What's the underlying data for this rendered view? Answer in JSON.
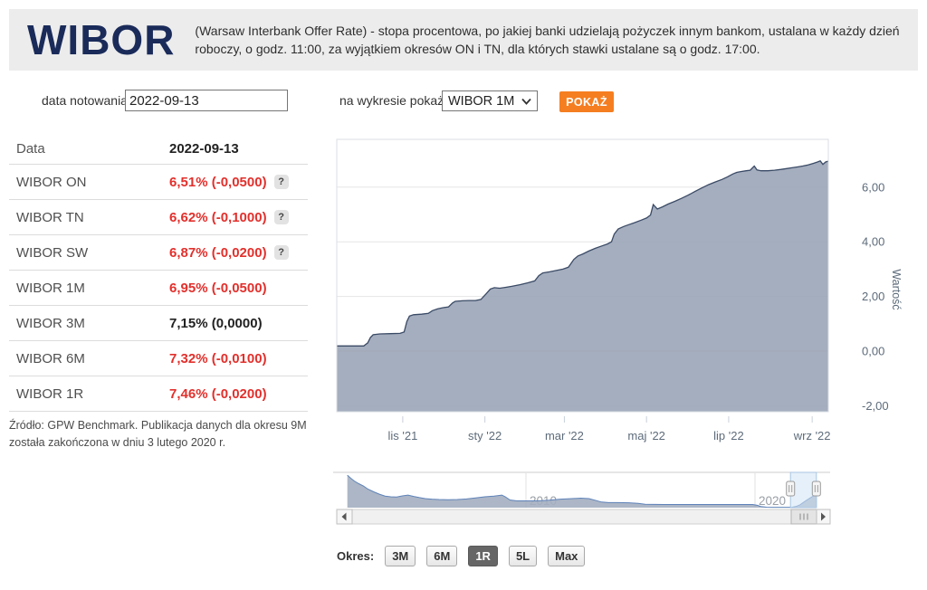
{
  "header": {
    "title": "WIBOR",
    "description": "(Warsaw Interbank Offer Rate) - stopa procentowa, po jakiej banki udzielają pożyczek innym bankom, ustalana w każdy dzień roboczy, o godz. 11:00, za wyjątkiem okresów ON i TN, dla których stawki ustalane są o godz. 17:00."
  },
  "controls": {
    "date_label": "data notowania:",
    "date_value": "2022-09-13",
    "series_label": "na wykresie pokaż:",
    "series_value": "WIBOR 1M",
    "show_button": "POKAŻ"
  },
  "table": {
    "help_label": "?",
    "header": {
      "label": "Data",
      "value": "2022-09-13"
    },
    "rows": [
      {
        "label": "WIBOR ON",
        "value": "6,51% (-0,0500)",
        "negative": true,
        "help": true
      },
      {
        "label": "WIBOR TN",
        "value": "6,62% (-0,1000)",
        "negative": true,
        "help": true
      },
      {
        "label": "WIBOR SW",
        "value": "6,87% (-0,0200)",
        "negative": true,
        "help": true
      },
      {
        "label": "WIBOR 1M",
        "value": "6,95% (-0,0500)",
        "negative": true,
        "help": false
      },
      {
        "label": "WIBOR 3M",
        "value": "7,15% (0,0000)",
        "negative": false,
        "help": false
      },
      {
        "label": "WIBOR 6M",
        "value": "7,32% (-0,0100)",
        "negative": true,
        "help": false
      },
      {
        "label": "WIBOR 1R",
        "value": "7,46% (-0,0200)",
        "negative": true,
        "help": false
      }
    ]
  },
  "source_note": "Źródło: GPW Benchmark. Publikacja danych dla okresu 9M została zakończona w dniu 3 lutego 2020 r.",
  "period": {
    "label": "Okres:",
    "buttons": [
      "3M",
      "6M",
      "1R",
      "5L",
      "Max"
    ],
    "active": "1R"
  },
  "chart_data": {
    "type": "area",
    "series_name": "WIBOR 1M",
    "ylabel": "Wartość",
    "ylim": [
      -2.2,
      7.75
    ],
    "x_range_days": 365,
    "yticks": [
      {
        "label": "6,00",
        "value": 6
      },
      {
        "label": "4,00",
        "value": 4
      },
      {
        "label": "2,00",
        "value": 2
      },
      {
        "label": "0,00",
        "value": 0
      },
      {
        "label": "-2,00",
        "value": -2
      }
    ],
    "xticks": [
      {
        "label": "lis '21",
        "day": 49
      },
      {
        "label": "sty '22",
        "day": 110
      },
      {
        "label": "mar '22",
        "day": 169
      },
      {
        "label": "maj '22",
        "day": 230
      },
      {
        "label": "lip '22",
        "day": 291
      },
      {
        "label": "wrz '22",
        "day": 353
      }
    ],
    "points": [
      [
        0,
        0.19
      ],
      [
        10,
        0.19
      ],
      [
        20,
        0.19
      ],
      [
        23,
        0.3
      ],
      [
        25,
        0.5
      ],
      [
        27,
        0.6
      ],
      [
        32,
        0.63
      ],
      [
        40,
        0.64
      ],
      [
        47,
        0.65
      ],
      [
        50,
        0.7
      ],
      [
        52,
        1.08
      ],
      [
        54,
        1.28
      ],
      [
        57,
        1.33
      ],
      [
        63,
        1.35
      ],
      [
        68,
        1.38
      ],
      [
        71,
        1.48
      ],
      [
        75,
        1.55
      ],
      [
        79,
        1.59
      ],
      [
        83,
        1.62
      ],
      [
        86,
        1.76
      ],
      [
        88,
        1.82
      ],
      [
        93,
        1.84
      ],
      [
        98,
        1.85
      ],
      [
        103,
        1.85
      ],
      [
        107,
        1.89
      ],
      [
        111,
        2.1
      ],
      [
        114,
        2.27
      ],
      [
        117,
        2.32
      ],
      [
        121,
        2.3
      ],
      [
        125,
        2.33
      ],
      [
        130,
        2.37
      ],
      [
        136,
        2.43
      ],
      [
        142,
        2.5
      ],
      [
        147,
        2.57
      ],
      [
        150,
        2.76
      ],
      [
        153,
        2.86
      ],
      [
        158,
        2.9
      ],
      [
        163,
        2.95
      ],
      [
        168,
        3.0
      ],
      [
        172,
        3.07
      ],
      [
        176,
        3.35
      ],
      [
        179,
        3.48
      ],
      [
        183,
        3.56
      ],
      [
        187,
        3.66
      ],
      [
        192,
        3.76
      ],
      [
        197,
        3.85
      ],
      [
        201,
        3.92
      ],
      [
        204,
        4.0
      ],
      [
        206,
        4.28
      ],
      [
        209,
        4.47
      ],
      [
        213,
        4.56
      ],
      [
        217,
        4.63
      ],
      [
        221,
        4.7
      ],
      [
        226,
        4.79
      ],
      [
        230,
        4.87
      ],
      [
        233,
        4.98
      ],
      [
        235,
        5.36
      ],
      [
        238,
        5.2
      ],
      [
        242,
        5.28
      ],
      [
        246,
        5.38
      ],
      [
        251,
        5.48
      ],
      [
        256,
        5.59
      ],
      [
        261,
        5.71
      ],
      [
        266,
        5.84
      ],
      [
        271,
        5.97
      ],
      [
        276,
        6.09
      ],
      [
        281,
        6.19
      ],
      [
        286,
        6.28
      ],
      [
        290,
        6.37
      ],
      [
        294,
        6.48
      ],
      [
        297,
        6.54
      ],
      [
        300,
        6.57
      ],
      [
        304,
        6.6
      ],
      [
        307,
        6.62
      ],
      [
        310,
        6.77
      ],
      [
        312,
        6.63
      ],
      [
        315,
        6.6
      ],
      [
        320,
        6.6
      ],
      [
        325,
        6.62
      ],
      [
        330,
        6.65
      ],
      [
        334,
        6.68
      ],
      [
        338,
        6.71
      ],
      [
        342,
        6.74
      ],
      [
        346,
        6.77
      ],
      [
        350,
        6.81
      ],
      [
        354,
        6.87
      ],
      [
        357,
        6.92
      ],
      [
        359,
        6.96
      ],
      [
        361,
        6.83
      ],
      [
        363,
        6.92
      ],
      [
        365,
        6.95
      ]
    ],
    "navigator": {
      "xlim_years": [
        2002.2,
        2023.2
      ],
      "year_gridlines": [
        {
          "label": "2010",
          "year": 2010
        },
        {
          "label": "2020",
          "year": 2020
        }
      ],
      "selection_years": [
        2021.55,
        2022.68
      ],
      "points": [
        [
          2002.2,
          16.8
        ],
        [
          2002.35,
          15.2
        ],
        [
          2002.5,
          13.8
        ],
        [
          2002.7,
          12.4
        ],
        [
          2002.9,
          11.2
        ],
        [
          2003.1,
          9.6
        ],
        [
          2003.35,
          8.2
        ],
        [
          2003.6,
          7.0
        ],
        [
          2003.85,
          6.0
        ],
        [
          2004.1,
          5.6
        ],
        [
          2004.35,
          5.5
        ],
        [
          2004.6,
          6.1
        ],
        [
          2004.85,
          6.5
        ],
        [
          2005.1,
          5.8
        ],
        [
          2005.35,
          5.2
        ],
        [
          2005.6,
          4.7
        ],
        [
          2005.9,
          4.4
        ],
        [
          2006.2,
          4.2
        ],
        [
          2006.6,
          4.1
        ],
        [
          2007.0,
          4.2
        ],
        [
          2007.4,
          4.5
        ],
        [
          2007.8,
          5.0
        ],
        [
          2008.2,
          5.6
        ],
        [
          2008.6,
          6.0
        ],
        [
          2008.95,
          6.5
        ],
        [
          2009.1,
          5.6
        ],
        [
          2009.3,
          4.0
        ],
        [
          2009.6,
          3.5
        ],
        [
          2010.0,
          3.5
        ],
        [
          2010.5,
          3.5
        ],
        [
          2011.0,
          3.9
        ],
        [
          2011.5,
          4.4
        ],
        [
          2012.0,
          4.7
        ],
        [
          2012.4,
          4.9
        ],
        [
          2012.75,
          4.7
        ],
        [
          2013.0,
          3.9
        ],
        [
          2013.3,
          2.9
        ],
        [
          2013.6,
          2.6
        ],
        [
          2014.0,
          2.6
        ],
        [
          2014.5,
          2.55
        ],
        [
          2014.9,
          2.2
        ],
        [
          2015.2,
          1.8
        ],
        [
          2015.6,
          1.68
        ],
        [
          2016.0,
          1.66
        ],
        [
          2017.0,
          1.65
        ],
        [
          2018.0,
          1.64
        ],
        [
          2019.0,
          1.64
        ],
        [
          2019.9,
          1.62
        ],
        [
          2020.1,
          1.2
        ],
        [
          2020.25,
          0.6
        ],
        [
          2020.5,
          0.25
        ],
        [
          2020.8,
          0.2
        ],
        [
          2021.2,
          0.19
        ],
        [
          2021.6,
          0.2
        ],
        [
          2021.8,
          0.65
        ],
        [
          2021.95,
          1.35
        ],
        [
          2022.05,
          2.2
        ],
        [
          2022.2,
          3.4
        ],
        [
          2022.35,
          4.6
        ],
        [
          2022.5,
          5.7
        ],
        [
          2022.6,
          6.3
        ],
        [
          2022.7,
          6.95
        ]
      ]
    },
    "colors": {
      "area_fill": "#99a3b5",
      "area_line": "#3a4a66",
      "nav_fill": "#a3aec0",
      "nav_line": "#5f83b9",
      "grid": "#e6e6e6",
      "axis_label": "#5d6b7a",
      "selection": "#cfe3f5",
      "accent_red": "#e2302c",
      "accent_orange": "#f57e20"
    }
  }
}
